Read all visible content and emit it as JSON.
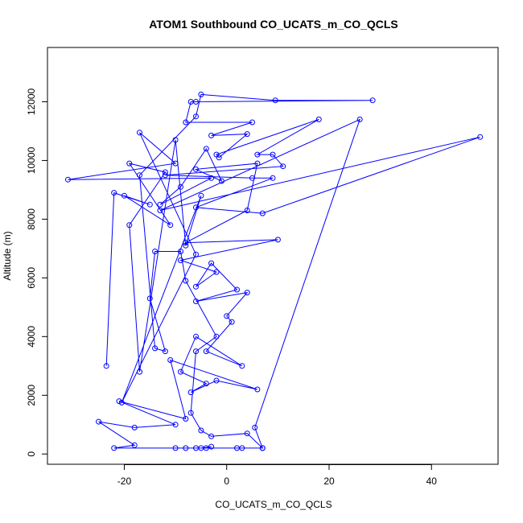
{
  "chart_data": {
    "type": "line",
    "title": "ATOM1 Southbound CO_UCATS_m_CO_QCLS",
    "xlabel": "CO_UCATS_m_CO_QCLS",
    "ylabel": "Altitude (m)",
    "xlim": [
      -35,
      53
    ],
    "ylim": [
      -350,
      13850
    ],
    "xticks": [
      -20,
      0,
      20,
      40
    ],
    "yticks": [
      0,
      2000,
      4000,
      6000,
      8000,
      10000,
      12000
    ],
    "grid": false,
    "legend": "none",
    "colors": {
      "series": "#0000ff",
      "axes": "#000000"
    },
    "series": [
      {
        "values": [
          [
            -23.5,
            3000
          ],
          [
            -22,
            8900
          ],
          [
            -15,
            8500
          ],
          [
            -20,
            8800
          ],
          [
            -11,
            7800
          ],
          [
            -19,
            9900
          ],
          [
            -12,
            9600
          ],
          [
            -19,
            7800
          ],
          [
            -17,
            2800
          ],
          [
            -10,
            10700
          ],
          [
            -8,
            7100
          ],
          [
            -5,
            8800
          ],
          [
            -20.5,
            1750
          ],
          [
            -6,
            6800
          ],
          [
            -17,
            10950
          ],
          [
            -10,
            9900
          ],
          [
            -31,
            9350
          ],
          [
            -3,
            9400
          ],
          [
            -13,
            8500
          ],
          [
            -9,
            9100
          ],
          [
            -4,
            10400
          ],
          [
            -1,
            9300
          ],
          [
            -6,
            9700
          ],
          [
            6,
            9900
          ],
          [
            4,
            8300
          ],
          [
            -8,
            7200
          ],
          [
            10,
            7300
          ],
          [
            -9,
            6600
          ],
          [
            -2,
            6200
          ],
          [
            -6,
            5700
          ],
          [
            -3,
            6500
          ],
          [
            2,
            5600
          ],
          [
            -6,
            5200
          ],
          [
            4,
            5500
          ],
          [
            0,
            4700
          ],
          [
            1,
            4500
          ],
          [
            -4,
            3500
          ],
          [
            3,
            3000
          ],
          [
            -6,
            4000
          ],
          [
            -9,
            2800
          ],
          [
            -4,
            2400
          ],
          [
            -7,
            2100
          ],
          [
            -2,
            2500
          ],
          [
            6,
            2200
          ],
          [
            -11,
            3200
          ],
          [
            -8,
            1200
          ],
          [
            -21,
            1800
          ],
          [
            -10,
            1000
          ],
          [
            -18,
            900
          ],
          [
            -25,
            1100
          ],
          [
            -18,
            300
          ],
          [
            -22,
            200
          ],
          [
            -10,
            200
          ],
          [
            -8,
            200
          ],
          [
            -5,
            200
          ],
          [
            -3,
            250
          ],
          [
            -4,
            200
          ],
          [
            -6,
            200
          ],
          [
            2,
            200
          ],
          [
            3,
            200
          ],
          [
            7,
            200
          ],
          [
            4,
            700
          ],
          [
            -3,
            600
          ],
          [
            -5,
            800
          ],
          [
            -7,
            1400
          ],
          [
            -6,
            3500
          ],
          [
            -2,
            4000
          ],
          [
            -8,
            5900
          ],
          [
            -9,
            6900
          ],
          [
            -14,
            6900
          ],
          [
            -15,
            5300
          ],
          [
            -12,
            3500
          ],
          [
            -14,
            3600
          ],
          [
            -17,
            9500
          ],
          [
            -6,
            11500
          ],
          [
            -5,
            12250
          ],
          [
            9.5,
            12050
          ],
          [
            28.5,
            12050
          ],
          [
            -6,
            12000
          ],
          [
            -7,
            12000
          ],
          [
            -8,
            11300
          ],
          [
            5,
            11300
          ],
          [
            -3,
            10850
          ],
          [
            4,
            10900
          ],
          [
            -1.5,
            10100
          ],
          [
            -2,
            10200
          ],
          [
            18,
            11400
          ],
          [
            6,
            10200
          ],
          [
            9,
            10200
          ],
          [
            11,
            9800
          ],
          [
            -12,
            9500
          ],
          [
            5,
            9400
          ],
          [
            9,
            9400
          ],
          [
            -6,
            8400
          ],
          [
            7,
            8200
          ],
          [
            49.5,
            10800
          ],
          [
            -13,
            8300
          ],
          [
            26,
            11400
          ],
          [
            5.5,
            900
          ],
          [
            7,
            200
          ]
        ]
      }
    ]
  }
}
